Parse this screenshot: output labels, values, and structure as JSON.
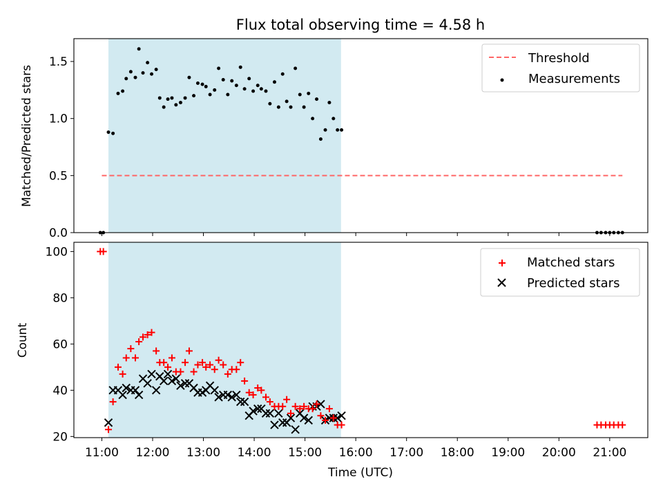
{
  "title": "Flux total observing time = 4.58 h",
  "xlabel": "Time (UTC)",
  "colors": {
    "band": "#add8e6",
    "threshold": "#ff6666",
    "measurements": "#000000",
    "matched": "#ff0000",
    "predicted": "#000000"
  },
  "chart_data": [
    {
      "type": "scatter",
      "ylabel": "Matched/Predicted stars",
      "ylim": [
        0,
        1.7
      ],
      "yticks": [
        0.0,
        0.5,
        1.0,
        1.5
      ],
      "ytick_labels": [
        "0.0",
        "0.5",
        "1.0",
        "1.5"
      ],
      "xlim": [
        10.45,
        21.75
      ],
      "observing_band": [
        11.13,
        15.71
      ],
      "legend_position": "top-right",
      "threshold": {
        "name": "Threshold",
        "value": 0.5,
        "x_range": [
          11.0,
          21.25
        ]
      },
      "series": [
        {
          "name": "Measurements",
          "x": [
            10.97,
            11.03,
            11.13,
            11.22,
            11.32,
            11.41,
            11.48,
            11.57,
            11.66,
            11.73,
            11.81,
            11.9,
            11.98,
            12.07,
            12.14,
            12.22,
            12.3,
            12.38,
            12.46,
            12.55,
            12.64,
            12.72,
            12.81,
            12.89,
            12.98,
            13.05,
            13.13,
            13.22,
            13.3,
            13.39,
            13.48,
            13.56,
            13.65,
            13.73,
            13.81,
            13.9,
            13.98,
            14.07,
            14.14,
            14.23,
            14.31,
            14.4,
            14.48,
            14.56,
            14.64,
            14.72,
            14.81,
            14.9,
            14.98,
            15.07,
            15.15,
            15.23,
            15.31,
            15.4,
            15.48,
            15.56,
            15.64,
            15.72,
            20.75,
            20.83,
            20.92,
            21.0,
            21.08,
            21.17,
            21.25
          ],
          "y": [
            0,
            0,
            0.88,
            0.87,
            1.22,
            1.24,
            1.35,
            1.41,
            1.36,
            1.61,
            1.4,
            1.49,
            1.39,
            1.43,
            1.18,
            1.1,
            1.17,
            1.18,
            1.12,
            1.14,
            1.18,
            1.36,
            1.2,
            1.31,
            1.3,
            1.28,
            1.21,
            1.25,
            1.44,
            1.34,
            1.21,
            1.33,
            1.29,
            1.45,
            1.26,
            1.35,
            1.24,
            1.29,
            1.26,
            1.24,
            1.13,
            1.32,
            1.1,
            1.39,
            1.15,
            1.1,
            1.44,
            1.21,
            1.1,
            1.22,
            1.0,
            1.17,
            0.82,
            0.9,
            1.14,
            1.0,
            0.9,
            0.9,
            0,
            0,
            0,
            0,
            0,
            0,
            0
          ]
        }
      ]
    },
    {
      "type": "scatter",
      "ylabel": "Count",
      "ylim": [
        19.5,
        104
      ],
      "yticks": [
        20,
        40,
        60,
        80,
        100
      ],
      "ytick_labels": [
        "20",
        "40",
        "60",
        "80",
        "100"
      ],
      "xlim": [
        10.45,
        21.75
      ],
      "xticks": [
        11,
        12,
        13,
        14,
        15,
        16,
        17,
        18,
        19,
        20,
        21
      ],
      "xtick_labels": [
        "11:00",
        "12:00",
        "13:00",
        "14:00",
        "15:00",
        "16:00",
        "17:00",
        "18:00",
        "19:00",
        "20:00",
        "21:00"
      ],
      "observing_band": [
        11.13,
        15.71
      ],
      "legend_position": "top-right",
      "series": [
        {
          "name": "Matched stars",
          "marker": "plus",
          "x": [
            10.97,
            11.03,
            11.13,
            11.22,
            11.32,
            11.41,
            11.48,
            11.57,
            11.66,
            11.73,
            11.81,
            11.9,
            11.98,
            12.07,
            12.14,
            12.22,
            12.3,
            12.38,
            12.46,
            12.55,
            12.64,
            12.72,
            12.81,
            12.89,
            12.98,
            13.05,
            13.13,
            13.22,
            13.3,
            13.39,
            13.48,
            13.56,
            13.65,
            13.73,
            13.81,
            13.9,
            13.98,
            14.07,
            14.14,
            14.23,
            14.31,
            14.4,
            14.48,
            14.56,
            14.64,
            14.72,
            14.81,
            14.9,
            14.98,
            15.07,
            15.15,
            15.23,
            15.31,
            15.4,
            15.48,
            15.56,
            15.64,
            15.72,
            20.75,
            20.83,
            20.92,
            21.0,
            21.08,
            21.17,
            21.25
          ],
          "y": [
            100,
            100,
            23,
            35,
            50,
            47,
            54,
            58,
            54,
            61,
            63,
            64,
            65,
            57,
            52,
            52,
            50,
            54,
            48,
            48,
            52,
            57,
            48,
            51,
            52,
            50,
            51,
            49,
            53,
            51,
            47,
            49,
            49,
            52,
            44,
            39,
            38,
            41,
            40,
            37,
            35,
            33,
            33,
            33,
            36,
            30,
            33,
            32,
            33,
            32,
            32,
            34,
            29,
            27,
            32,
            28,
            25,
            25,
            25,
            25,
            25,
            25,
            25,
            25,
            25
          ]
        },
        {
          "name": "Predicted stars",
          "marker": "x",
          "x": [
            11.13,
            11.22,
            11.32,
            11.41,
            11.48,
            11.57,
            11.66,
            11.73,
            11.81,
            11.9,
            11.98,
            12.07,
            12.14,
            12.22,
            12.3,
            12.38,
            12.46,
            12.55,
            12.64,
            12.72,
            12.81,
            12.89,
            12.98,
            13.05,
            13.13,
            13.22,
            13.3,
            13.39,
            13.48,
            13.56,
            13.65,
            13.73,
            13.81,
            13.9,
            13.98,
            14.07,
            14.14,
            14.23,
            14.31,
            14.4,
            14.48,
            14.56,
            14.64,
            14.72,
            14.81,
            14.9,
            14.98,
            15.07,
            15.15,
            15.23,
            15.31,
            15.4,
            15.48,
            15.56,
            15.64,
            15.72
          ],
          "y": [
            26,
            40,
            40,
            38,
            41,
            40,
            40,
            38,
            45,
            43,
            47,
            40,
            46,
            44,
            47,
            44,
            45,
            42,
            43,
            43,
            41,
            39,
            39,
            40,
            42,
            40,
            37,
            38,
            38,
            37,
            38,
            35,
            35,
            29,
            31,
            32,
            32,
            30,
            30,
            25,
            30,
            26,
            26,
            28,
            23,
            30,
            28,
            27,
            33,
            33,
            34,
            27,
            28,
            28,
            28,
            29
          ]
        }
      ]
    }
  ]
}
